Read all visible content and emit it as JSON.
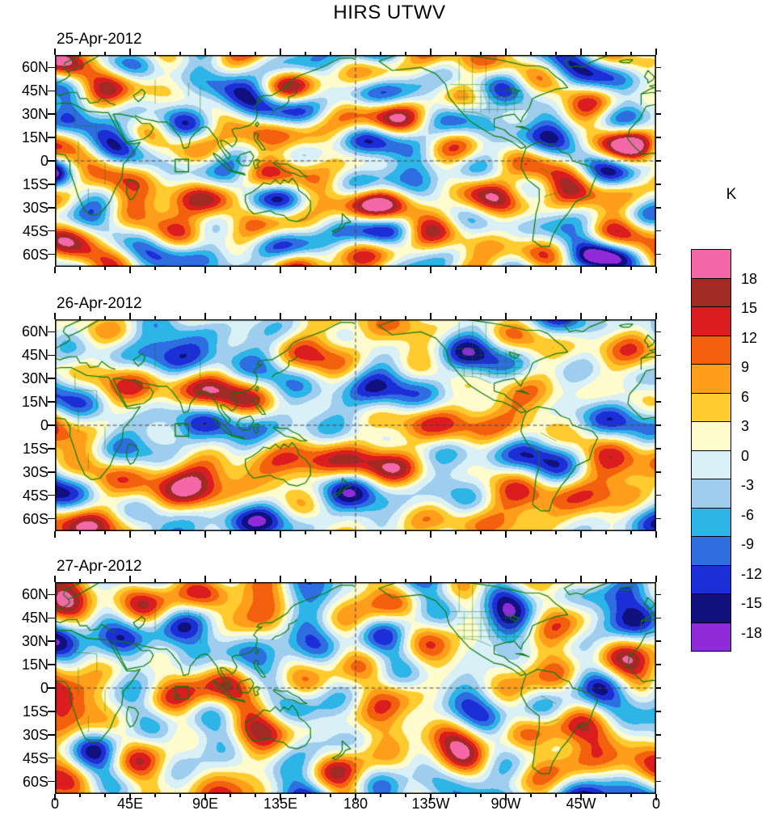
{
  "title": "HIRS UTWV",
  "colorbar": {
    "unit": "K",
    "tick_labels": [
      "18",
      "15",
      "12",
      "9",
      "6",
      "3",
      "0",
      "-3",
      "-6",
      "-9",
      "-12",
      "-15",
      "-18"
    ],
    "levels_low_to_high": [
      -18,
      -15,
      -12,
      -9,
      -6,
      -3,
      0,
      3,
      6,
      9,
      12,
      15,
      18
    ],
    "colors_low_to_high": [
      "#8F2BD9",
      "#10107E",
      "#1C2ED6",
      "#2E6EE0",
      "#2EB5E8",
      "#9FCDEE",
      "#D9F0F7",
      "#FFFBCC",
      "#FFCB2E",
      "#FF9E1B",
      "#F4610E",
      "#DB1D20",
      "#A12A25",
      "#F468A8"
    ]
  },
  "axes": {
    "lat_tick_labels": [
      "60N",
      "45N",
      "30N",
      "15N",
      "0",
      "15S",
      "30S",
      "45S",
      "60S"
    ],
    "lat_tick_degrees": [
      60,
      45,
      30,
      15,
      0,
      -15,
      -30,
      -45,
      -60
    ],
    "lon_tick_labels": [
      "0",
      "45E",
      "90E",
      "135E",
      "180",
      "135W",
      "90W",
      "45W",
      "0"
    ],
    "lon_tick_degrees": [
      0,
      45,
      90,
      135,
      180,
      225,
      270,
      315,
      360
    ]
  },
  "panels": [
    {
      "date": "25-Apr-2012",
      "seed": 20120425
    },
    {
      "date": "26-Apr-2012",
      "seed": 20120426
    },
    {
      "date": "27-Apr-2012",
      "seed": 20120427
    }
  ],
  "map_style": {
    "coastline_color": "#0A7D0A",
    "frame_color": "#000000",
    "reference_lines": "dashed equator and dashed 180 meridian",
    "marker_box": {
      "lon_min_e": 72,
      "lon_max_e": 80,
      "lat_min": -7,
      "lat_max": 1
    }
  },
  "chart_data": {
    "type": "heatmap",
    "subtype": "filled-contour-world-map-anomalies",
    "title": "HIRS UTWV",
    "unit": "K",
    "contour_levels": [
      -18,
      -15,
      -12,
      -9,
      -6,
      -3,
      0,
      3,
      6,
      9,
      12,
      15,
      18
    ],
    "level_colors_low_to_high": [
      "#8F2BD9",
      "#10107E",
      "#1C2ED6",
      "#2E6EE0",
      "#2EB5E8",
      "#9FCDEE",
      "#D9F0F7",
      "#FFFBCC",
      "#FFCB2E",
      "#FF9E1B",
      "#F4610E",
      "#DB1D20",
      "#A12A25",
      "#F468A8"
    ],
    "lon_range_deg_east": [
      0,
      360
    ],
    "lat_range_deg": [
      -68,
      68
    ],
    "xticks": [
      "0",
      "45E",
      "90E",
      "135E",
      "180",
      "135W",
      "90W",
      "45W",
      "0"
    ],
    "yticks": [
      "60N",
      "45N",
      "30N",
      "15N",
      "0",
      "15S",
      "30S",
      "45S",
      "60S"
    ],
    "legend_position": "right",
    "panels": [
      {
        "date": "25-Apr-2012",
        "notable_features": [
          {
            "lon_e": 55,
            "lat": -25,
            "value_k": 18
          },
          {
            "lon_e": 140,
            "lat": -12,
            "value_k": 15
          },
          {
            "lon_e": 255,
            "lat": 15,
            "value_k": -18
          },
          {
            "lon_e": 345,
            "lat": -3,
            "value_k": 12
          }
        ]
      },
      {
        "date": "26-Apr-2012",
        "notable_features": [
          {
            "lon_e": 75,
            "lat": -25,
            "value_k": 18
          },
          {
            "lon_e": 320,
            "lat": -8,
            "value_k": 15
          },
          {
            "lon_e": 265,
            "lat": 18,
            "value_k": 9
          },
          {
            "lon_e": 60,
            "lat": 10,
            "value_k": -12
          }
        ]
      },
      {
        "date": "27-Apr-2012",
        "notable_features": [
          {
            "lon_e": 80,
            "lat": -27,
            "value_k": 18
          },
          {
            "lon_e": 330,
            "lat": -5,
            "value_k": 15
          },
          {
            "lon_e": 165,
            "lat": 12,
            "value_k": -15
          },
          {
            "lon_e": 285,
            "lat": -20,
            "value_k": -12
          }
        ]
      }
    ]
  }
}
